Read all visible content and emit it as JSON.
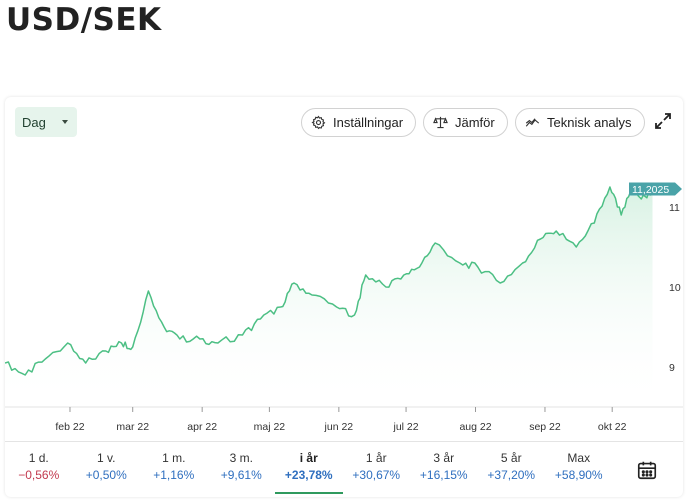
{
  "header": {
    "title": "USD/SEK"
  },
  "toolbar": {
    "period_selected": "Dag",
    "settings_label": "Inställningar",
    "compare_label": "Jämför",
    "analysis_label": "Teknisk analys"
  },
  "colors": {
    "line": "#4cbf84",
    "fill": "#e9f7ef",
    "price_badge": "#4aa3a8",
    "positive": "#2f6fbf",
    "negative": "#c2394e",
    "active_tab": "#2f9a5e"
  },
  "chart_data": {
    "type": "area",
    "title": "",
    "xlabel": "",
    "ylabel": "",
    "ylim": [
      8.5,
      11.5
    ],
    "y_ticks": [
      "9",
      "10",
      "11"
    ],
    "x_ticks": [
      "feb 22",
      "mar 22",
      "apr 22",
      "maj 22",
      "jun 22",
      "jul 22",
      "aug 22",
      "sep 22",
      "okt 22"
    ],
    "last_price_label": "11,2025",
    "grid": false,
    "x": [
      "2022-01-03",
      "2022-01-12",
      "2022-01-21",
      "2022-01-31",
      "2022-02-08",
      "2022-02-17",
      "2022-02-24",
      "2022-03-01",
      "2022-03-08",
      "2022-03-15",
      "2022-03-22",
      "2022-03-31",
      "2022-04-08",
      "2022-04-19",
      "2022-04-27",
      "2022-05-06",
      "2022-05-12",
      "2022-05-20",
      "2022-05-31",
      "2022-06-08",
      "2022-06-13",
      "2022-06-22",
      "2022-06-30",
      "2022-07-07",
      "2022-07-14",
      "2022-07-25",
      "2022-08-02",
      "2022-08-12",
      "2022-08-22",
      "2022-08-30",
      "2022-09-06",
      "2022-09-15",
      "2022-09-23",
      "2022-09-30",
      "2022-10-05",
      "2022-10-10",
      "2022-10-14",
      "2022-10-19"
    ],
    "values": [
      9.05,
      8.9,
      9.1,
      9.3,
      9.05,
      9.2,
      9.3,
      9.25,
      9.95,
      9.5,
      9.35,
      9.35,
      9.3,
      9.4,
      9.6,
      9.75,
      10.05,
      9.9,
      9.75,
      9.65,
      10.15,
      10.0,
      10.15,
      10.25,
      10.55,
      10.3,
      10.25,
      10.05,
      10.3,
      10.6,
      10.7,
      10.5,
      10.8,
      11.25,
      10.9,
      11.25,
      11.1,
      11.2
    ]
  },
  "tabs": [
    {
      "label": "1 d.",
      "change": "−0,56%",
      "positive": false
    },
    {
      "label": "1 v.",
      "change": "+0,50%",
      "positive": true
    },
    {
      "label": "1 m.",
      "change": "+1,16%",
      "positive": true
    },
    {
      "label": "3 m.",
      "change": "+9,61%",
      "positive": true
    },
    {
      "label": "i år",
      "change": "+23,78%",
      "positive": true,
      "active": true
    },
    {
      "label": "1 år",
      "change": "+30,67%",
      "positive": true
    },
    {
      "label": "3 år",
      "change": "+16,15%",
      "positive": true
    },
    {
      "label": "5 år",
      "change": "+37,20%",
      "positive": true
    },
    {
      "label": "Max",
      "change": "+58,90%",
      "positive": true
    }
  ]
}
